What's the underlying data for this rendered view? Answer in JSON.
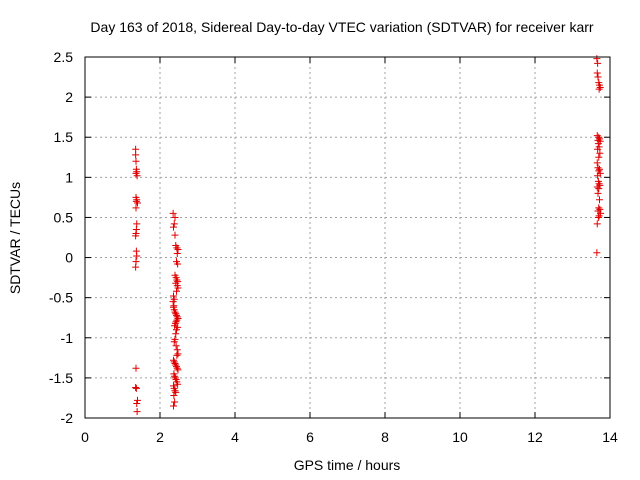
{
  "chart_data": {
    "type": "scatter",
    "title": "Day 163 of 2018, Sidereal Day-to-day VTEC variation (SDTVAR) for receiver karr",
    "xlabel": "GPS time / hours",
    "ylabel": "SDTVAR / TECUs",
    "xlim": [
      0,
      14
    ],
    "ylim": [
      -2,
      2.5
    ],
    "xticks": [
      "0",
      "2",
      "4",
      "6",
      "8",
      "10",
      "12",
      "14"
    ],
    "yticks": [
      "-2",
      "-1.5",
      "-1",
      "-0.5",
      "0",
      "0.5",
      "1",
      "1.5",
      "2",
      "2.5"
    ],
    "grid": true,
    "marker": "+",
    "color": "#e00000",
    "series": [
      {
        "points": [
          [
            1.35,
            1.35
          ],
          [
            1.35,
            1.28
          ],
          [
            1.36,
            1.2
          ],
          [
            1.37,
            1.1
          ],
          [
            1.38,
            1.07
          ],
          [
            1.36,
            1.05
          ],
          [
            1.39,
            1.02
          ],
          [
            1.36,
            0.75
          ],
          [
            1.38,
            0.72
          ],
          [
            1.37,
            0.7
          ],
          [
            1.4,
            0.68
          ],
          [
            1.36,
            0.62
          ],
          [
            1.38,
            0.42
          ],
          [
            1.37,
            0.35
          ],
          [
            1.36,
            0.3
          ],
          [
            1.35,
            0.27
          ],
          [
            1.37,
            0.08
          ],
          [
            1.38,
            0.02
          ],
          [
            1.36,
            -0.05
          ],
          [
            1.35,
            -0.12
          ],
          [
            1.36,
            -1.38
          ],
          [
            1.35,
            -1.62
          ],
          [
            1.37,
            -1.63
          ],
          [
            1.4,
            -1.78
          ],
          [
            1.38,
            -1.82
          ],
          [
            1.39,
            -1.92
          ],
          [
            2.35,
            0.55
          ],
          [
            2.4,
            0.5
          ],
          [
            2.38,
            0.42
          ],
          [
            2.36,
            0.38
          ],
          [
            2.4,
            0.28
          ],
          [
            2.42,
            0.15
          ],
          [
            2.45,
            0.12
          ],
          [
            2.48,
            0.1
          ],
          [
            2.46,
            0.05
          ],
          [
            2.44,
            -0.05
          ],
          [
            2.47,
            -0.08
          ],
          [
            2.4,
            -0.22
          ],
          [
            2.43,
            -0.25
          ],
          [
            2.45,
            -0.28
          ],
          [
            2.47,
            -0.3
          ],
          [
            2.42,
            -0.32
          ],
          [
            2.46,
            -0.35
          ],
          [
            2.48,
            -0.38
          ],
          [
            2.44,
            -0.42
          ],
          [
            2.36,
            -0.48
          ],
          [
            2.38,
            -0.52
          ],
          [
            2.35,
            -0.55
          ],
          [
            2.37,
            -0.6
          ],
          [
            2.36,
            -0.62
          ],
          [
            2.38,
            -0.65
          ],
          [
            2.4,
            -0.68
          ],
          [
            2.42,
            -0.7
          ],
          [
            2.44,
            -0.72
          ],
          [
            2.46,
            -0.74
          ],
          [
            2.48,
            -0.76
          ],
          [
            2.45,
            -0.78
          ],
          [
            2.43,
            -0.8
          ],
          [
            2.41,
            -0.82
          ],
          [
            2.39,
            -0.85
          ],
          [
            2.47,
            -0.87
          ],
          [
            2.44,
            -0.9
          ],
          [
            2.42,
            -0.95
          ],
          [
            2.4,
            -1.02
          ],
          [
            2.38,
            -1.05
          ],
          [
            2.43,
            -1.1
          ],
          [
            2.46,
            -1.15
          ],
          [
            2.48,
            -1.2
          ],
          [
            2.45,
            -1.22
          ],
          [
            2.36,
            -1.28
          ],
          [
            2.38,
            -1.3
          ],
          [
            2.4,
            -1.32
          ],
          [
            2.42,
            -1.34
          ],
          [
            2.44,
            -1.36
          ],
          [
            2.46,
            -1.38
          ],
          [
            2.48,
            -1.4
          ],
          [
            2.37,
            -1.45
          ],
          [
            2.39,
            -1.48
          ],
          [
            2.41,
            -1.5
          ],
          [
            2.43,
            -1.52
          ],
          [
            2.45,
            -1.55
          ],
          [
            2.47,
            -1.58
          ],
          [
            2.36,
            -1.6
          ],
          [
            2.38,
            -1.63
          ],
          [
            2.4,
            -1.66
          ],
          [
            2.42,
            -1.68
          ],
          [
            2.37,
            -1.72
          ],
          [
            2.39,
            -1.8
          ],
          [
            2.36,
            -1.85
          ],
          [
            13.65,
            2.48
          ],
          [
            13.67,
            2.42
          ],
          [
            13.66,
            2.3
          ],
          [
            13.68,
            2.25
          ],
          [
            13.7,
            2.18
          ],
          [
            13.72,
            2.15
          ],
          [
            13.74,
            2.12
          ],
          [
            13.71,
            2.1
          ],
          [
            13.66,
            1.52
          ],
          [
            13.7,
            1.5
          ],
          [
            13.72,
            1.48
          ],
          [
            13.68,
            1.46
          ],
          [
            13.74,
            1.45
          ],
          [
            13.69,
            1.42
          ],
          [
            13.71,
            1.38
          ],
          [
            13.67,
            1.35
          ],
          [
            13.73,
            1.3
          ],
          [
            13.7,
            1.25
          ],
          [
            13.66,
            1.18
          ],
          [
            13.68,
            1.12
          ],
          [
            13.72,
            1.1
          ],
          [
            13.7,
            1.08
          ],
          [
            13.74,
            1.05
          ],
          [
            13.67,
            1.02
          ],
          [
            13.69,
            0.95
          ],
          [
            13.71,
            0.92
          ],
          [
            13.73,
            0.9
          ],
          [
            13.66,
            0.88
          ],
          [
            13.7,
            0.86
          ],
          [
            13.68,
            0.8
          ],
          [
            13.72,
            0.72
          ],
          [
            13.7,
            0.62
          ],
          [
            13.73,
            0.6
          ],
          [
            13.68,
            0.58
          ],
          [
            13.75,
            0.55
          ],
          [
            13.71,
            0.52
          ],
          [
            13.69,
            0.5
          ],
          [
            13.66,
            0.42
          ],
          [
            13.65,
            0.06
          ]
        ]
      }
    ]
  }
}
